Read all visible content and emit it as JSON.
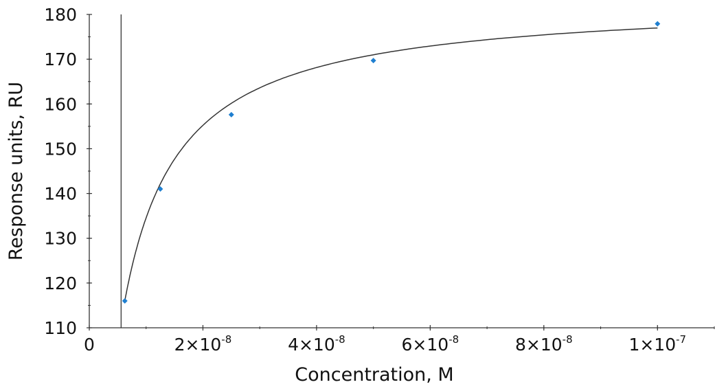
{
  "chart_data": {
    "type": "scatter",
    "title": "",
    "xlabel": "Concentration, M",
    "ylabel": "Response units, RU",
    "xlim": [
      0,
      1.1e-07
    ],
    "ylim": [
      110,
      180
    ],
    "x_ticks": [
      0,
      2e-08,
      4e-08,
      6e-08,
      8e-08,
      1e-07
    ],
    "x_tick_labels": [
      {
        "base": "0",
        "exp": ""
      },
      {
        "base": "2×10",
        "exp": "-8"
      },
      {
        "base": "4×10",
        "exp": "-8"
      },
      {
        "base": "6×10",
        "exp": "-8"
      },
      {
        "base": "8×10",
        "exp": "-8"
      },
      {
        "base": "1×10",
        "exp": "-7"
      }
    ],
    "y_ticks": [
      110,
      120,
      130,
      140,
      150,
      160,
      170,
      180
    ],
    "y_tick_labels": [
      "110",
      "120",
      "130",
      "140",
      "150",
      "160",
      "170",
      "180"
    ],
    "grid": false,
    "points": {
      "x": [
        6.25e-09,
        1.25e-08,
        2.5e-08,
        5e-08,
        1e-07
      ],
      "y": [
        116,
        141,
        157.6,
        169.7,
        177.9
      ],
      "color": "#1f7fd0"
    },
    "fit_curve": {
      "model": "Rmax*C/(KD+C)",
      "Rmax": 183.4,
      "KD": 3.63e-09,
      "x_range": [
        6.25e-09,
        1e-07
      ],
      "color": "#333333"
    },
    "vertical_line_x": 5.6e-09
  }
}
